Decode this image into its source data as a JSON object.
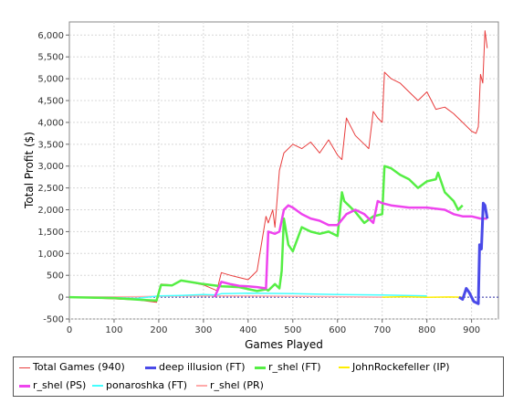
{
  "chart_data": {
    "type": "line",
    "xlabel": "Games Played",
    "ylabel": "Total Profit ($)",
    "xlim": [
      0,
      960
    ],
    "ylim": [
      -500,
      6300
    ],
    "xticks": [
      0,
      100,
      200,
      300,
      400,
      500,
      600,
      700,
      800,
      900
    ],
    "yticks": [
      -500,
      0,
      500,
      1000,
      1500,
      2000,
      2500,
      3000,
      3500,
      4000,
      4500,
      5000,
      5500,
      6000
    ],
    "xtick_labels": [
      "0",
      "100",
      "200",
      "300",
      "400",
      "500",
      "600",
      "700",
      "800",
      "900"
    ],
    "ytick_labels": [
      "-500",
      "0",
      "500",
      "1,000",
      "1,500",
      "2,000",
      "2,500",
      "3,000",
      "3,500",
      "4,000",
      "4,500",
      "5,000",
      "5,500",
      "6,000"
    ],
    "grid": true,
    "legend_position": "bottom",
    "series": [
      {
        "name": "Total Games (940)",
        "color": "#e83c3c",
        "width": 1,
        "x": [
          0,
          100,
          150,
          195,
          205,
          230,
          250,
          265,
          300,
          330,
          340,
          360,
          380,
          400,
          420,
          440,
          445,
          455,
          460,
          470,
          480,
          500,
          520,
          540,
          560,
          580,
          600,
          610,
          620,
          640,
          660,
          670,
          680,
          690,
          700,
          705,
          720,
          740,
          760,
          780,
          800,
          820,
          840,
          860,
          880,
          900,
          910,
          915,
          920,
          925,
          930,
          935
        ],
        "y": [
          0,
          -40,
          -60,
          -120,
          300,
          280,
          380,
          350,
          280,
          150,
          560,
          500,
          450,
          400,
          600,
          1850,
          1700,
          2000,
          1600,
          2900,
          3300,
          3500,
          3400,
          3550,
          3300,
          3600,
          3250,
          3150,
          4100,
          3700,
          3500,
          3400,
          4250,
          4100,
          4000,
          5150,
          5000,
          4900,
          4700,
          4500,
          4700,
          4300,
          4350,
          4200,
          4000,
          3800,
          3750,
          3900,
          5100,
          4900,
          6100,
          5700
        ]
      },
      {
        "name": "deep illusion (FT)",
        "color": "#4a4ae8",
        "width": 3,
        "x": [
          872,
          880,
          888,
          895,
          905,
          915,
          918,
          922,
          926,
          930,
          935
        ],
        "y": [
          0,
          -50,
          200,
          100,
          -100,
          -150,
          1200,
          1100,
          2150,
          2100,
          1800
        ]
      },
      {
        "name": "r_shel (FT)",
        "color": "#55ee44",
        "width": 2.5,
        "x": [
          0,
          100,
          160,
          195,
          205,
          230,
          250,
          300,
          340,
          380,
          420,
          440,
          445,
          460,
          470,
          475,
          480,
          490,
          500,
          520,
          540,
          560,
          580,
          600,
          610,
          615,
          640,
          660,
          680,
          700,
          705,
          720,
          740,
          760,
          780,
          800,
          820,
          825,
          840,
          860,
          870,
          880
        ],
        "y": [
          0,
          -20,
          -60,
          -80,
          280,
          270,
          380,
          300,
          250,
          230,
          140,
          180,
          150,
          300,
          200,
          600,
          1800,
          1200,
          1050,
          1600,
          1500,
          1450,
          1500,
          1400,
          2400,
          2200,
          1950,
          1700,
          1850,
          1900,
          3000,
          2950,
          2800,
          2700,
          2500,
          2650,
          2700,
          2850,
          2400,
          2200,
          2000,
          2100
        ]
      },
      {
        "name": "JohnRockefeller (IP)",
        "color": "#ffee00",
        "width": 1.5,
        "x": [
          700,
          750,
          800,
          850,
          880
        ],
        "y": [
          0,
          10,
          -5,
          5,
          0
        ]
      },
      {
        "name": "r_shel (PS)",
        "color": "#ee44ee",
        "width": 2.5,
        "x": [
          325,
          340,
          360,
          380,
          400,
          420,
          440,
          445,
          460,
          470,
          480,
          490,
          500,
          520,
          540,
          560,
          580,
          600,
          620,
          640,
          660,
          680,
          690,
          700,
          720,
          760,
          800,
          840,
          860,
          880,
          900,
          920,
          935
        ],
        "y": [
          0,
          350,
          300,
          260,
          250,
          230,
          200,
          1500,
          1450,
          1500,
          2000,
          2100,
          2050,
          1900,
          1800,
          1750,
          1650,
          1650,
          1900,
          2000,
          1900,
          1700,
          2200,
          2150,
          2100,
          2050,
          2050,
          2000,
          1900,
          1850,
          1850,
          1800,
          1800
        ]
      },
      {
        "name": "ponaroshka (FT)",
        "color": "#44ffff",
        "width": 1.5,
        "x": [
          0,
          100,
          150,
          200,
          250,
          300,
          330,
          340,
          400,
          500,
          600,
          700,
          800
        ],
        "y": [
          0,
          -10,
          -30,
          30,
          40,
          60,
          50,
          80,
          90,
          80,
          60,
          50,
          30
        ]
      },
      {
        "name": "r_shel (PR)",
        "color": "#ffaaaa",
        "width": 1.5,
        "x": [
          0,
          150,
          200,
          300,
          400,
          500,
          600,
          700
        ],
        "y": [
          0,
          10,
          20,
          30,
          30,
          20,
          10,
          0
        ]
      }
    ]
  }
}
